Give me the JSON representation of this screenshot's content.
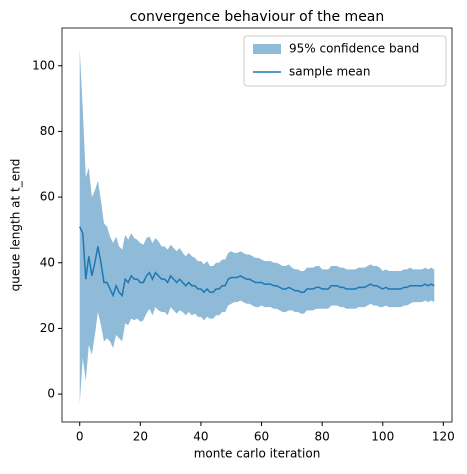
{
  "chart_data": {
    "type": "line",
    "title": "convergence behaviour of the mean",
    "x_label": "monte carlo iteration",
    "y_label": "queue length at t_end",
    "x": [
      0,
      1,
      2,
      3,
      4,
      5,
      6,
      7,
      8,
      9,
      10,
      11,
      12,
      13,
      14,
      15,
      16,
      17,
      18,
      19,
      20,
      21,
      22,
      23,
      24,
      25,
      26,
      27,
      28,
      29,
      30,
      31,
      32,
      33,
      34,
      35,
      36,
      37,
      38,
      39,
      40,
      41,
      42,
      43,
      44,
      45,
      46,
      47,
      48,
      49,
      50,
      51,
      52,
      53,
      54,
      55,
      56,
      57,
      58,
      59,
      60,
      61,
      62,
      63,
      64,
      65,
      66,
      67,
      68,
      69,
      70,
      71,
      72,
      73,
      74,
      75,
      76,
      77,
      78,
      79,
      80,
      81,
      82,
      83,
      84,
      85,
      86,
      87,
      88,
      89,
      90,
      91,
      92,
      93,
      94,
      95,
      96,
      97,
      98,
      99,
      100,
      101,
      102,
      103,
      104,
      105,
      106,
      107,
      108,
      109,
      110,
      111,
      112,
      113,
      114,
      115,
      116,
      117
    ],
    "series": [
      {
        "name": "95% confidence band",
        "color": "#8fbbd9",
        "upper": [
          105,
          87,
          66,
          69,
          60,
          62,
          65,
          59,
          52,
          51,
          48,
          46,
          48,
          45,
          44,
          48.5,
          47,
          49,
          47.5,
          47,
          46,
          45.5,
          47.5,
          48,
          46,
          47.5,
          46.5,
          45,
          45,
          44,
          45.5,
          44.5,
          43.5,
          44.5,
          43,
          42,
          43,
          42,
          41.5,
          40.5,
          40.5,
          39.5,
          40.5,
          39,
          39,
          40,
          40,
          41,
          41,
          43,
          43.5,
          43,
          43,
          43.5,
          43,
          42.5,
          42.5,
          42,
          41.5,
          41.5,
          41,
          40.5,
          40.5,
          40.5,
          40,
          40,
          39.5,
          39,
          39,
          39.5,
          38.5,
          38,
          38,
          37.5,
          37.5,
          38.5,
          38.5,
          38.5,
          39,
          39,
          38,
          38,
          38,
          39,
          39,
          39,
          38.5,
          38.5,
          38,
          38,
          38,
          38,
          38.5,
          38.5,
          38.5,
          39,
          39.5,
          39,
          39,
          38.5,
          37.5,
          38,
          37.5,
          37.5,
          37.5,
          37.5,
          37.5,
          38,
          38,
          38.5,
          38,
          38,
          38,
          38,
          38.5,
          38,
          38.5,
          38
        ],
        "lower": [
          -3,
          11,
          4,
          15,
          12,
          18,
          25,
          21,
          16,
          17,
          16,
          14,
          18,
          17,
          16,
          21.5,
          21,
          23,
          22.5,
          23,
          22,
          22.5,
          24.5,
          26,
          24,
          26.5,
          25.5,
          25,
          25,
          24,
          26.5,
          25.5,
          24.5,
          25.5,
          25,
          24,
          25,
          24,
          24.5,
          23.5,
          23.5,
          22.5,
          23.5,
          23,
          23,
          24,
          24,
          25,
          25,
          27,
          27.5,
          28,
          28,
          28.5,
          28,
          27.5,
          27.5,
          27,
          26.5,
          26.5,
          27,
          26.5,
          26.5,
          26.5,
          26,
          26,
          25.5,
          25,
          25,
          25.5,
          25.5,
          25,
          25,
          24.5,
          24.5,
          25.5,
          25.5,
          25.5,
          26,
          26,
          26,
          26,
          26,
          27,
          27,
          27,
          26.5,
          26.5,
          26,
          26,
          26,
          26,
          26.5,
          26.5,
          26.5,
          27,
          27.5,
          27,
          27,
          26.5,
          26.5,
          27,
          26.5,
          26.5,
          26.5,
          26.5,
          26.5,
          27,
          27,
          27.5,
          28,
          28,
          28,
          28,
          28.5,
          28,
          28.5,
          28
        ]
      },
      {
        "name": "sample mean",
        "color": "#1f77b4",
        "values": [
          51,
          49,
          35,
          42,
          36,
          40,
          45,
          40,
          34,
          34,
          32,
          30,
          33,
          31,
          30,
          35,
          34,
          36,
          35,
          35,
          34,
          34,
          36,
          37,
          35,
          37,
          36,
          35,
          35,
          34,
          36,
          35,
          34,
          35,
          34,
          33,
          34,
          33,
          33,
          32,
          32,
          31,
          32,
          31,
          31,
          32,
          32,
          33,
          33,
          35,
          35.5,
          35.5,
          35.5,
          36,
          35.5,
          35,
          35,
          34.5,
          34,
          34,
          34,
          33.5,
          33.5,
          33.5,
          33,
          33,
          32.5,
          32,
          32,
          32.5,
          32,
          31.5,
          31.5,
          31,
          31,
          32,
          32,
          32,
          32.5,
          32.5,
          32,
          32,
          32,
          33,
          33,
          33,
          32.5,
          32.5,
          32,
          32,
          32,
          32,
          32.5,
          32.5,
          32.5,
          33,
          33.5,
          33,
          33,
          32.5,
          32,
          32.5,
          32,
          32,
          32,
          32,
          32,
          32.5,
          32.5,
          33,
          33,
          33,
          33,
          33,
          33.5,
          33,
          33.5,
          33
        ]
      }
    ],
    "xlim": [
      -5.85,
      122.85
    ],
    "ylim": [
      -8.5,
      111.5
    ],
    "xticks": [
      0,
      20,
      40,
      60,
      80,
      100,
      120
    ],
    "yticks": [
      0,
      20,
      40,
      60,
      80,
      100
    ],
    "legend": "upper right"
  }
}
